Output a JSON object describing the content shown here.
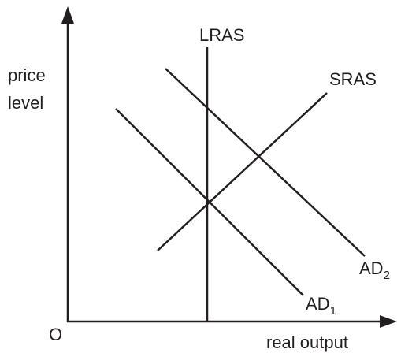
{
  "axes": {
    "y_label": [
      "price",
      "level"
    ],
    "x_label": "real output",
    "origin": "O"
  },
  "curves": [
    {
      "label": "LRAS"
    },
    {
      "label": "SRAS"
    },
    {
      "label": "AD",
      "subscript": "1"
    },
    {
      "label": "AD",
      "subscript": "2"
    }
  ]
}
